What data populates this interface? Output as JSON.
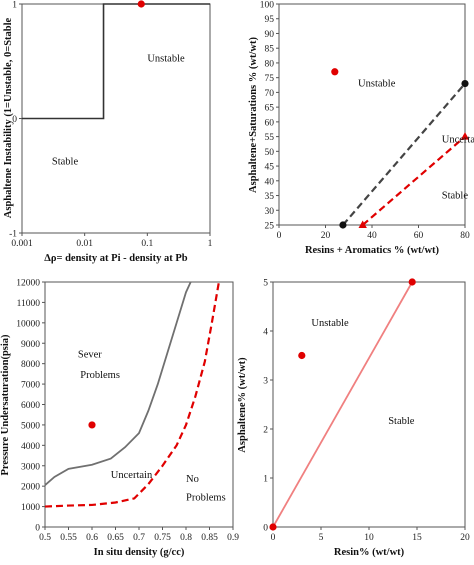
{
  "chart_data": [
    {
      "type": "line",
      "ylabel": "Asphaltene Instability (1=Unstable, 0=Stable",
      "xlabel": "∆ρ= density at Pi - density at Pb",
      "xscale": "log",
      "xlim": [
        0.001,
        1
      ],
      "ylim": [
        -1,
        1
      ],
      "x_tick_labels": [
        "0.001",
        "0.01",
        "0.1",
        "1"
      ],
      "y_tick_labels": [
        "1",
        "0",
        "-1"
      ],
      "series": [
        {
          "type": "step",
          "x": [
            0.001,
            0.02,
            0.02,
            1
          ],
          "y": [
            0,
            0,
            1,
            1
          ]
        },
        {
          "type": "scatter",
          "color": "#e00000",
          "x": [
            0.08
          ],
          "y": [
            1
          ]
        }
      ],
      "annotations": [
        {
          "text": "Stable",
          "x": 0.003,
          "y": -0.4
        },
        {
          "text": "Unstable",
          "x": 0.1,
          "y": 0.5
        }
      ],
      "grid": false
    },
    {
      "type": "line",
      "ylabel": "Asphaltene+Saturations % (wt/wt)",
      "xlabel": "Resins + Aromatics % (wt/wt)",
      "xlim": [
        0,
        80
      ],
      "ylim": [
        25,
        100
      ],
      "x_ticks": [
        0,
        20,
        40,
        60,
        80
      ],
      "y_ticks": [
        25,
        30,
        35,
        40,
        45,
        50,
        55,
        60,
        65,
        70,
        75,
        80,
        85,
        90,
        95,
        100
      ],
      "series": [
        {
          "type": "dashed-line",
          "color": "#444444",
          "marker": "circle",
          "x": [
            27.5,
            80
          ],
          "y": [
            25,
            73
          ]
        },
        {
          "type": "dashed-line",
          "color": "#e00000",
          "marker": "triangle",
          "x": [
            36,
            80
          ],
          "y": [
            25,
            55
          ]
        },
        {
          "type": "scatter",
          "color": "#e00000",
          "x": [
            24
          ],
          "y": [
            77
          ]
        }
      ],
      "annotations": [
        {
          "text": "Unstable",
          "x": 34,
          "y": 72
        },
        {
          "text": "Uncertain",
          "x": 70,
          "y": 53
        },
        {
          "text": "Stable",
          "x": 70,
          "y": 34
        }
      ],
      "grid": false
    },
    {
      "type": "line",
      "ylabel": "Pressure Undersaturation(psia)",
      "xlabel": "In situ density (g/cc)",
      "xlim": [
        0.5,
        0.9
      ],
      "ylim": [
        0,
        12000
      ],
      "x_ticks": [
        0.5,
        0.55,
        0.6,
        0.65,
        0.7,
        0.75,
        0.8,
        0.85,
        0.9
      ],
      "x_tick_labels": [
        "0.5",
        "0.55",
        "0.6",
        "0.65",
        "0.7",
        "0.75",
        "0.8",
        "0.85",
        "0.9"
      ],
      "y_ticks": [
        0,
        1000,
        2000,
        3000,
        4000,
        5000,
        6000,
        7000,
        8000,
        9000,
        10000,
        11000,
        12000
      ],
      "series": [
        {
          "type": "line",
          "color": "#707070",
          "x": [
            0.5,
            0.52,
            0.55,
            0.6,
            0.64,
            0.67,
            0.7,
            0.72,
            0.74,
            0.76,
            0.78,
            0.8,
            0.81
          ],
          "y": [
            2050,
            2450,
            2850,
            3050,
            3350,
            3900,
            4600,
            5700,
            7000,
            8500,
            10000,
            11500,
            12000
          ]
        },
        {
          "type": "dashed-line",
          "color": "#e00000",
          "x": [
            0.5,
            0.55,
            0.6,
            0.65,
            0.69,
            0.72,
            0.75,
            0.78,
            0.8,
            0.82,
            0.84,
            0.855,
            0.87
          ],
          "y": [
            1000,
            1050,
            1080,
            1200,
            1400,
            2100,
            3000,
            4000,
            5000,
            6400,
            8100,
            10000,
            12000
          ]
        },
        {
          "type": "scatter",
          "color": "#e00000",
          "x": [
            0.6
          ],
          "y": [
            5000
          ]
        }
      ],
      "annotations": [
        {
          "text": "Sever",
          "x": 0.57,
          "y": 8300
        },
        {
          "text": "Problems",
          "x": 0.575,
          "y": 7300
        },
        {
          "text": "Uncertain",
          "x": 0.64,
          "y": 2400
        },
        {
          "text": "No",
          "x": 0.8,
          "y": 2200
        },
        {
          "text": "Problems",
          "x": 0.8,
          "y": 1300
        }
      ],
      "grid": false
    },
    {
      "type": "line",
      "ylabel": "Asphaltene% (wt/wt)",
      "xlabel": "Resin% (wt/wt)",
      "xlim": [
        0,
        20
      ],
      "ylim": [
        0,
        5
      ],
      "x_ticks": [
        0,
        5,
        10,
        15,
        20
      ],
      "y_ticks": [
        0,
        1,
        2,
        3,
        4,
        5
      ],
      "series": [
        {
          "type": "line",
          "color": "#f08080",
          "x": [
            0,
            14.5
          ],
          "y": [
            0,
            5
          ]
        },
        {
          "type": "scatter",
          "color": "#e00000",
          "x": [
            0,
            14.5,
            3
          ],
          "y": [
            0,
            5,
            3.5
          ]
        }
      ],
      "annotations": [
        {
          "text": "Unstable",
          "x": 4,
          "y": 4.1
        },
        {
          "text": "Stable",
          "x": 12,
          "y": 2.1
        }
      ],
      "grid": false
    }
  ]
}
